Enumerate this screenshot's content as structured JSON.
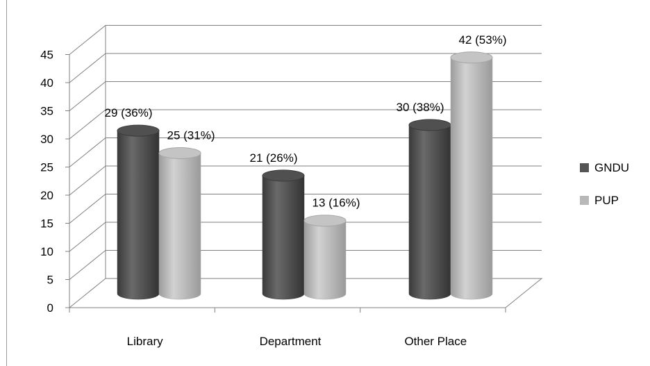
{
  "chart_data": {
    "type": "bar",
    "style": "3d-cylinder",
    "categories": [
      "Library",
      "Department",
      "Other Place"
    ],
    "series": [
      {
        "name": "GNDU",
        "values": [
          29,
          21,
          30
        ],
        "labels": [
          "29 (36%)",
          "21 (26%)",
          "30 (38%)"
        ],
        "color": "#555555"
      },
      {
        "name": "PUP",
        "values": [
          25,
          13,
          42
        ],
        "labels": [
          "25 (31%)",
          "13 (16%)",
          "42 (53%)"
        ],
        "color": "#b8b8b8"
      }
    ],
    "ylim": [
      0,
      45
    ],
    "yticks": [
      0,
      5,
      10,
      15,
      20,
      25,
      30,
      35,
      40,
      45
    ],
    "grid": true,
    "legend_position": "right"
  }
}
